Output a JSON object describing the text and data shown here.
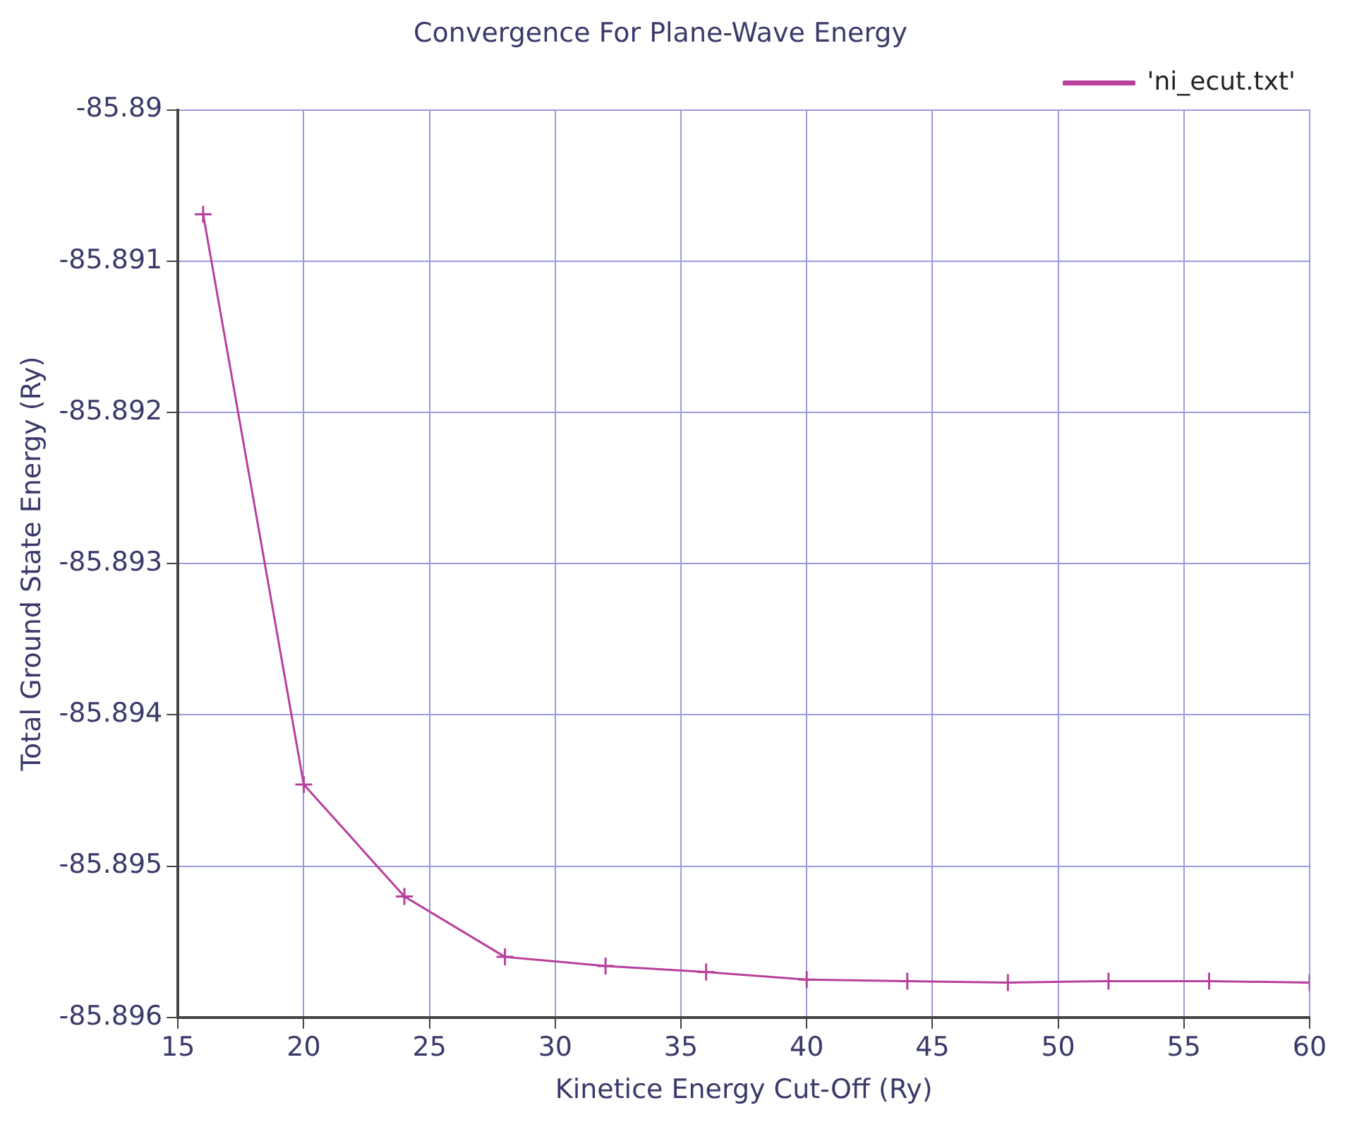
{
  "chart_data": {
    "type": "line",
    "title": "Convergence For Plane-Wave Energy",
    "xlabel": "Kinetice Energy Cut-Off (Ry)",
    "ylabel": "Total Ground State Energy (Ry)",
    "x": [
      16,
      20,
      24,
      28,
      32,
      36,
      40,
      44,
      48,
      52,
      56,
      60
    ],
    "series": [
      {
        "name": "'ni_ecut.txt'",
        "color": "#b8409c",
        "values": [
          -85.89069,
          -85.89446,
          -85.8952,
          -85.8956,
          -85.89566,
          -85.8957,
          -85.89575,
          -85.89576,
          -85.89577,
          -85.89576,
          -85.89576,
          -85.89577
        ]
      }
    ],
    "xlim": [
      15,
      60
    ],
    "xticks": [
      15,
      20,
      25,
      30,
      35,
      40,
      45,
      50,
      55,
      60
    ],
    "ylim": [
      -85.896,
      -85.89
    ],
    "yticks": [
      -85.896,
      -85.895,
      -85.894,
      -85.893,
      -85.892,
      -85.891,
      -85.89
    ],
    "grid": true,
    "legend": "top right",
    "marker": "cross",
    "line_style": "solid"
  }
}
